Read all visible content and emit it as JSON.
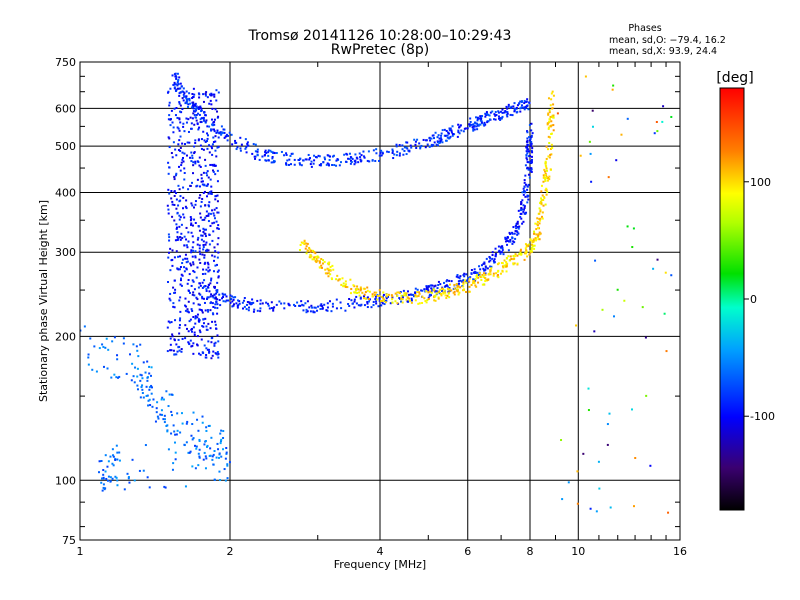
{
  "chart_data": {
    "type": "scatter",
    "title": "Tromsø 20141126 10:28:00–10:29:43",
    "subtitle": "RwPretec (8p)",
    "xlabel": "Frequency [MHz]",
    "ylabel": "Stationary phase Virtual Height [km]",
    "x_scale": "log",
    "y_scale": "log",
    "xlim": [
      1,
      16
    ],
    "ylim": [
      75,
      750
    ],
    "x_ticks": [
      1,
      2,
      4,
      6,
      8,
      10,
      16
    ],
    "y_ticks": [
      75,
      100,
      200,
      300,
      400,
      500,
      600,
      750
    ],
    "grid": true,
    "phase_stats": {
      "title": "Phases",
      "o_line": "mean, sd,O: −79.4, 16.2",
      "x_line": "mean, sd,X:  93.9, 24.4"
    },
    "colorbar": {
      "label": "[deg]",
      "ticks": [
        100,
        0,
        -100
      ],
      "range": [
        -180,
        180
      ]
    },
    "series": [
      {
        "trace": "F-region O-mode upper trace",
        "points": [
          [
            1.55,
            700
          ],
          [
            1.6,
            650
          ],
          [
            1.7,
            600
          ],
          [
            1.8,
            560
          ],
          [
            2.0,
            520
          ],
          [
            2.3,
            480
          ],
          [
            2.6,
            470
          ],
          [
            3.0,
            465
          ],
          [
            3.5,
            470
          ],
          [
            4.0,
            480
          ],
          [
            4.5,
            495
          ],
          [
            5.0,
            510
          ],
          [
            5.5,
            530
          ],
          [
            6.0,
            550
          ],
          [
            6.5,
            570
          ],
          [
            7.0,
            585
          ],
          [
            7.5,
            600
          ],
          [
            8.0,
            620
          ]
        ],
        "phase": -85
      },
      {
        "trace": "F-region O-mode lower trace",
        "points": [
          [
            1.75,
            260
          ],
          [
            1.9,
            240
          ],
          [
            2.2,
            232
          ],
          [
            2.6,
            230
          ],
          [
            3.0,
            231
          ],
          [
            3.5,
            234
          ],
          [
            4.0,
            238
          ],
          [
            4.5,
            242
          ],
          [
            5.0,
            248
          ],
          [
            5.5,
            256
          ],
          [
            6.0,
            265
          ],
          [
            6.5,
            280
          ],
          [
            7.0,
            300
          ],
          [
            7.5,
            330
          ],
          [
            7.8,
            380
          ],
          [
            7.95,
            450
          ],
          [
            8.0,
            550
          ]
        ],
        "phase": -90
      },
      {
        "trace": "F-region X-mode trace",
        "points": [
          [
            2.8,
            310
          ],
          [
            3.0,
            290
          ],
          [
            3.3,
            265
          ],
          [
            3.6,
            250
          ],
          [
            4.0,
            242
          ],
          [
            4.5,
            240
          ],
          [
            5.0,
            242
          ],
          [
            5.5,
            248
          ],
          [
            6.0,
            255
          ],
          [
            6.5,
            265
          ],
          [
            7.0,
            278
          ],
          [
            7.5,
            292
          ],
          [
            8.0,
            305
          ],
          [
            8.3,
            330
          ],
          [
            8.5,
            380
          ],
          [
            8.7,
            450
          ],
          [
            8.8,
            560
          ],
          [
            8.85,
            640
          ]
        ],
        "phase": 100
      },
      {
        "trace": "Low-frequency cluster",
        "points": [
          [
            1.0,
            190
          ],
          [
            1.3,
            175
          ],
          [
            1.4,
            150
          ],
          [
            1.6,
            130
          ],
          [
            1.8,
            120
          ],
          [
            2.0,
            110
          ],
          [
            1.1,
            105
          ],
          [
            1.2,
            108
          ]
        ],
        "phase": -60
      }
    ]
  }
}
